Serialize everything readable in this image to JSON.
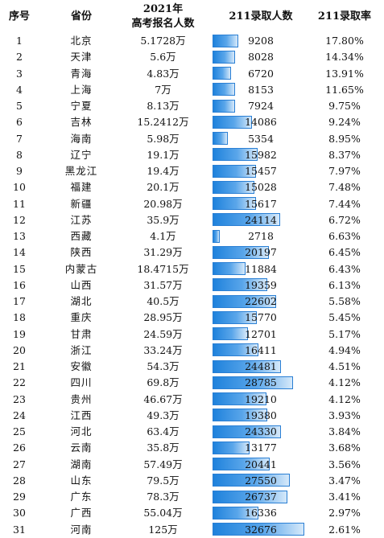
{
  "headers": {
    "index": "序号",
    "province": "省份",
    "registrants_line1": "2021年",
    "registrants_line2": "高考报名人数",
    "admitted": "211录取人数",
    "rate": "211录取率"
  },
  "rows": [
    {
      "index": "1",
      "province": "北京",
      "registrants": "5.1728万",
      "admitted": "9208",
      "rate": "17.80%"
    },
    {
      "index": "2",
      "province": "天津",
      "registrants": "5.6万",
      "admitted": "8028",
      "rate": "14.34%"
    },
    {
      "index": "3",
      "province": "青海",
      "registrants": "4.83万",
      "admitted": "6720",
      "rate": "13.91%"
    },
    {
      "index": "4",
      "province": "上海",
      "registrants": "7万",
      "admitted": "8153",
      "rate": "11.65%"
    },
    {
      "index": "5",
      "province": "宁夏",
      "registrants": "8.13万",
      "admitted": "7924",
      "rate": "9.75%"
    },
    {
      "index": "6",
      "province": "吉林",
      "registrants": "15.2412万",
      "admitted": "14086",
      "rate": "9.24%"
    },
    {
      "index": "7",
      "province": "海南",
      "registrants": "5.98万",
      "admitted": "5354",
      "rate": "8.95%"
    },
    {
      "index": "8",
      "province": "辽宁",
      "registrants": "19.1万",
      "admitted": "15982",
      "rate": "8.37%"
    },
    {
      "index": "9",
      "province": "黑龙江",
      "registrants": "19.4万",
      "admitted": "15457",
      "rate": "7.97%"
    },
    {
      "index": "10",
      "province": "福建",
      "registrants": "20.1万",
      "admitted": "15028",
      "rate": "7.48%"
    },
    {
      "index": "11",
      "province": "新疆",
      "registrants": "20.98万",
      "admitted": "15617",
      "rate": "7.44%"
    },
    {
      "index": "12",
      "province": "江苏",
      "registrants": "35.9万",
      "admitted": "24114",
      "rate": "6.72%"
    },
    {
      "index": "13",
      "province": "西藏",
      "registrants": "4.1万",
      "admitted": "2718",
      "rate": "6.63%"
    },
    {
      "index": "14",
      "province": "陕西",
      "registrants": "31.29万",
      "admitted": "20197",
      "rate": "6.45%"
    },
    {
      "index": "15",
      "province": "内蒙古",
      "registrants": "18.4715万",
      "admitted": "11884",
      "rate": "6.43%"
    },
    {
      "index": "16",
      "province": "山西",
      "registrants": "31.57万",
      "admitted": "19359",
      "rate": "6.13%"
    },
    {
      "index": "17",
      "province": "湖北",
      "registrants": "40.5万",
      "admitted": "22602",
      "rate": "5.58%"
    },
    {
      "index": "18",
      "province": "重庆",
      "registrants": "28.95万",
      "admitted": "15770",
      "rate": "5.45%"
    },
    {
      "index": "19",
      "province": "甘肃",
      "registrants": "24.59万",
      "admitted": "12701",
      "rate": "5.17%"
    },
    {
      "index": "20",
      "province": "浙江",
      "registrants": "33.24万",
      "admitted": "16411",
      "rate": "4.94%"
    },
    {
      "index": "21",
      "province": "安徽",
      "registrants": "54.3万",
      "admitted": "24481",
      "rate": "4.51%"
    },
    {
      "index": "22",
      "province": "四川",
      "registrants": "69.8万",
      "admitted": "28785",
      "rate": "4.12%"
    },
    {
      "index": "23",
      "province": "贵州",
      "registrants": "46.67万",
      "admitted": "19210",
      "rate": "4.12%"
    },
    {
      "index": "24",
      "province": "江西",
      "registrants": "49.3万",
      "admitted": "19380",
      "rate": "3.93%"
    },
    {
      "index": "25",
      "province": "河北",
      "registrants": "63.4万",
      "admitted": "24330",
      "rate": "3.84%"
    },
    {
      "index": "26",
      "province": "云南",
      "registrants": "35.8万",
      "admitted": "13177",
      "rate": "3.68%"
    },
    {
      "index": "27",
      "province": "湖南",
      "registrants": "57.49万",
      "admitted": "20441",
      "rate": "3.56%"
    },
    {
      "index": "28",
      "province": "山东",
      "registrants": "79.5万",
      "admitted": "27550",
      "rate": "3.47%"
    },
    {
      "index": "29",
      "province": "广东",
      "registrants": "78.3万",
      "admitted": "26737",
      "rate": "3.41%"
    },
    {
      "index": "30",
      "province": "广西",
      "registrants": "55.04万",
      "admitted": "16336",
      "rate": "2.97%"
    },
    {
      "index": "31",
      "province": "河南",
      "registrants": "125万",
      "admitted": "32676",
      "rate": "2.61%"
    }
  ],
  "chart_data": {
    "type": "table",
    "columns": [
      "序号",
      "省份",
      "2021年高考报名人数",
      "211录取人数",
      "211录取率"
    ],
    "bar_column": "211录取人数",
    "bar_color": "#1f82dc",
    "admitted_values": [
      9208,
      8028,
      6720,
      8153,
      7924,
      14086,
      5354,
      15982,
      15457,
      15028,
      15617,
      24114,
      2718,
      20197,
      11884,
      19359,
      22602,
      15770,
      12701,
      16411,
      24481,
      28785,
      19210,
      19380,
      24330,
      13177,
      20441,
      27550,
      26737,
      16336,
      32676
    ]
  }
}
